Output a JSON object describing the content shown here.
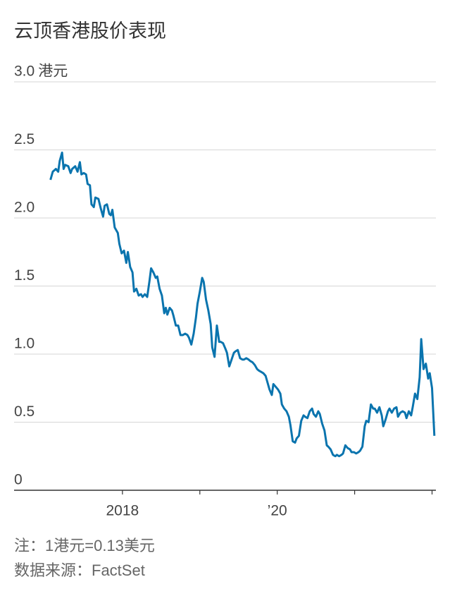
{
  "chart_data": {
    "type": "line",
    "title": "云顶香港股价表现",
    "y_unit": "港元",
    "notes": [
      "注：1港元=0.13美元",
      "数据来源：FactSet"
    ],
    "xlim": [
      2016.6,
      2022.05
    ],
    "xticks": [
      2018,
      {
        "value": 2020,
        "label": "’20"
      }
    ],
    "xminor_ticks": [
      2019,
      2021,
      2022
    ],
    "ylim": [
      0,
      3
    ],
    "yticks": [
      {
        "value": 3,
        "label": "3.0"
      },
      2.5,
      {
        "value": 2,
        "label": "2.0"
      },
      1.5,
      {
        "value": 1,
        "label": "1.0"
      },
      0.5,
      0
    ],
    "grid": true,
    "x": [
      2017.07,
      2017.1,
      2017.14,
      2017.17,
      2017.19,
      2017.22,
      2017.24,
      2017.26,
      2017.3,
      2017.33,
      2017.35,
      2017.39,
      2017.42,
      2017.45,
      2017.47,
      2017.5,
      2017.53,
      2017.55,
      2017.58,
      2017.6,
      2017.63,
      2017.65,
      2017.69,
      2017.72,
      2017.75,
      2017.77,
      2017.8,
      2017.83,
      2017.85,
      2017.87,
      2017.9,
      2017.94,
      2017.96,
      2017.99,
      2018.02,
      2018.05,
      2018.07,
      2018.1,
      2018.13,
      2018.15,
      2018.18,
      2018.21,
      2018.24,
      2018.26,
      2018.29,
      2018.32,
      2018.35,
      2018.37,
      2018.4,
      2018.43,
      2018.45,
      2018.48,
      2018.51,
      2018.54,
      2018.56,
      2018.58,
      2018.61,
      2018.64,
      2018.66,
      2018.69,
      2018.72,
      2018.75,
      2018.78,
      2018.81,
      2018.84,
      2018.86,
      2018.89,
      2018.92,
      2018.95,
      2018.97,
      2019.0,
      2019.03,
      2019.05,
      2019.08,
      2019.11,
      2019.14,
      2019.16,
      2019.19,
      2019.22,
      2019.25,
      2019.27,
      2019.3,
      2019.33,
      2019.35,
      2019.38,
      2019.41,
      2019.44,
      2019.46,
      2019.49,
      2019.52,
      2019.55,
      2019.57,
      2019.6,
      2019.63,
      2019.65,
      2019.68,
      2019.71,
      2019.74,
      2019.76,
      2019.79,
      2019.82,
      2019.85,
      2019.87,
      2019.9,
      2019.93,
      2019.95,
      2019.98,
      2020.01,
      2020.04,
      2020.06,
      2020.09,
      2020.12,
      2020.15,
      2020.17,
      2020.2,
      2020.23,
      2020.25,
      2020.28,
      2020.31,
      2020.34,
      2020.36,
      2020.39,
      2020.42,
      2020.45,
      2020.47,
      2020.5,
      2020.53,
      2020.55,
      2020.58,
      2020.61,
      2020.64,
      2020.66,
      2020.69,
      2020.72,
      2020.75,
      2020.77,
      2020.8,
      2020.83,
      2020.85,
      2020.88,
      2020.91,
      2020.94,
      2020.96,
      2020.99,
      2021.02,
      2021.05,
      2021.07,
      2021.1,
      2021.13,
      2021.15,
      2021.18,
      2021.21,
      2021.24,
      2021.26,
      2021.29,
      2021.32,
      2021.35,
      2021.37,
      2021.4,
      2021.43,
      2021.45,
      2021.48,
      2021.51,
      2021.54,
      2021.56,
      2021.59,
      2021.62,
      2021.65,
      2021.67,
      2021.7,
      2021.73,
      2021.75,
      2021.78,
      2021.81,
      2021.84,
      2021.86,
      2021.89,
      2021.92,
      2021.95,
      2021.97,
      2022.0,
      2022.03
    ],
    "series": [
      {
        "name": "云顶香港",
        "color": "#0a74ae",
        "values": [
          2.28,
          2.34,
          2.36,
          2.34,
          2.42,
          2.48,
          2.36,
          2.39,
          2.38,
          2.33,
          2.36,
          2.38,
          2.34,
          2.41,
          2.32,
          2.33,
          2.32,
          2.25,
          2.24,
          2.1,
          2.08,
          2.15,
          2.14,
          2.07,
          2.01,
          2.09,
          2.1,
          2.03,
          2.02,
          2.06,
          1.93,
          1.89,
          1.81,
          1.74,
          1.76,
          1.67,
          1.75,
          1.64,
          1.6,
          1.46,
          1.48,
          1.43,
          1.44,
          1.42,
          1.44,
          1.42,
          1.54,
          1.63,
          1.6,
          1.56,
          1.57,
          1.48,
          1.43,
          1.3,
          1.34,
          1.29,
          1.34,
          1.32,
          1.28,
          1.21,
          1.21,
          1.14,
          1.14,
          1.15,
          1.14,
          1.12,
          1.07,
          1.15,
          1.27,
          1.37,
          1.46,
          1.56,
          1.53,
          1.4,
          1.32,
          1.22,
          1.05,
          0.98,
          1.21,
          1.09,
          1.09,
          1.08,
          1.04,
          1.01,
          0.91,
          0.96,
          1.01,
          1.02,
          1.03,
          0.97,
          0.96,
          0.96,
          0.97,
          0.96,
          0.95,
          0.94,
          0.92,
          0.89,
          0.88,
          0.87,
          0.86,
          0.84,
          0.8,
          0.74,
          0.7,
          0.78,
          0.76,
          0.74,
          0.71,
          0.63,
          0.6,
          0.58,
          0.54,
          0.48,
          0.36,
          0.35,
          0.38,
          0.4,
          0.51,
          0.55,
          0.54,
          0.53,
          0.58,
          0.6,
          0.56,
          0.54,
          0.58,
          0.56,
          0.49,
          0.44,
          0.33,
          0.32,
          0.3,
          0.26,
          0.25,
          0.26,
          0.25,
          0.26,
          0.27,
          0.33,
          0.31,
          0.3,
          0.28,
          0.28,
          0.27,
          0.28,
          0.29,
          0.32,
          0.47,
          0.51,
          0.5,
          0.63,
          0.6,
          0.6,
          0.57,
          0.61,
          0.55,
          0.47,
          0.52,
          0.58,
          0.6,
          0.57,
          0.6,
          0.61,
          0.54,
          0.57,
          0.58,
          0.57,
          0.53,
          0.58,
          0.55,
          0.61,
          0.71,
          0.67,
          0.83,
          1.11,
          0.89,
          0.93,
          0.82,
          0.86,
          0.75,
          0.4
        ]
      }
    ]
  }
}
